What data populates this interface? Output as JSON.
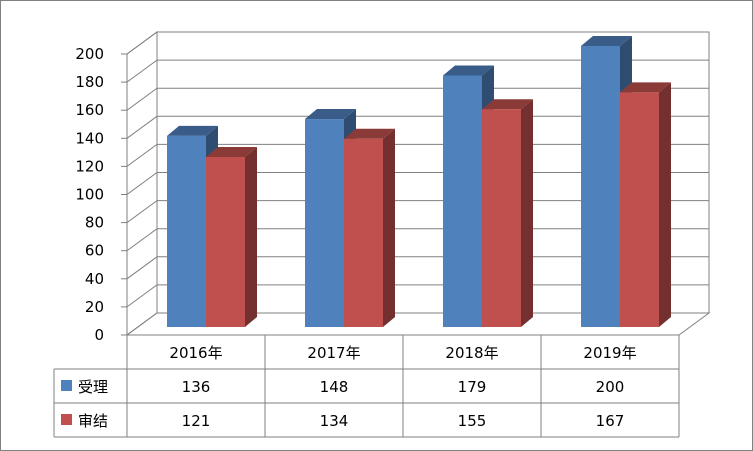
{
  "chart_data": {
    "type": "bar",
    "categories": [
      "2016年",
      "2017年",
      "2018年",
      "2019年"
    ],
    "series": [
      {
        "name": "受理",
        "values": [
          136,
          148,
          179,
          200
        ],
        "color": "#4F81BD"
      },
      {
        "name": "审结",
        "values": [
          121,
          134,
          155,
          167
        ],
        "color": "#C0504D"
      }
    ],
    "ylim": [
      0,
      200
    ],
    "yticks": [
      0,
      20,
      40,
      60,
      80,
      100,
      120,
      140,
      160,
      180,
      200
    ],
    "grid": true,
    "data_table": true,
    "legend": "in-data-table"
  }
}
